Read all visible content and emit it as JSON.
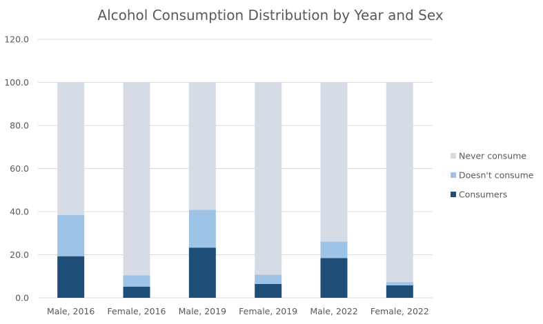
{
  "chart_data": {
    "type": "bar",
    "stacked": true,
    "title": "Alcohol Consumption Distribution by Year and Sex",
    "xlabel": "",
    "ylabel": "",
    "categories": [
      "Male, 2016",
      "Female, 2016",
      "Male, 2019",
      "Female, 2019",
      "Male, 2022",
      "Female, 2022"
    ],
    "series": [
      {
        "name": "Consumers",
        "color": "#1f4e79",
        "values": [
          19.3,
          5.2,
          23.3,
          6.4,
          18.4,
          5.8
        ]
      },
      {
        "name": "Doesn't consume",
        "color": "#9dc3e6",
        "values": [
          19.1,
          5.2,
          17.5,
          4.3,
          7.7,
          1.5
        ]
      },
      {
        "name": "Never consume",
        "color": "#d6dce5",
        "values": [
          61.6,
          89.6,
          59.2,
          89.3,
          73.9,
          92.7
        ]
      }
    ],
    "ylim": [
      0,
      120
    ],
    "yticks": [
      "0.0",
      "20.0",
      "40.0",
      "60.0",
      "80.0",
      "100.0",
      "120.0"
    ],
    "ytick_values": [
      0,
      20,
      40,
      60,
      80,
      100,
      120
    ],
    "grid": true,
    "legend_position": "right",
    "legend_order": [
      "Never consume",
      "Doesn't consume",
      "Consumers"
    ]
  }
}
